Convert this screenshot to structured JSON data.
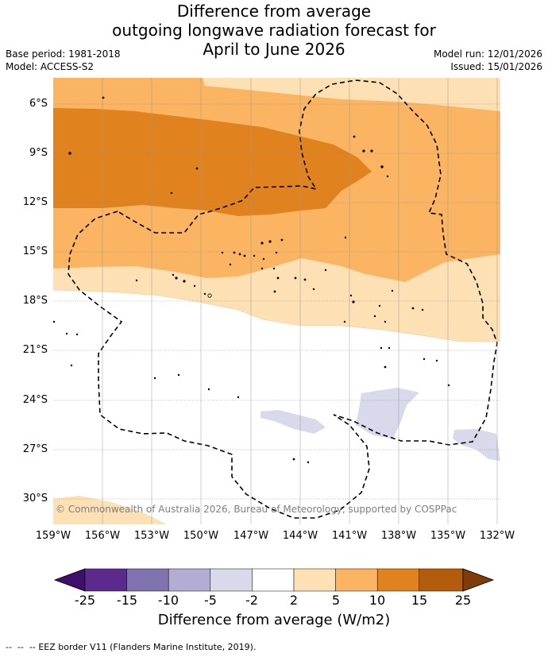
{
  "title": {
    "line1": "Difference from average",
    "line2": "outgoing longwave radiation forecast for",
    "line3": "April to June 2026"
  },
  "meta_left": {
    "base_period": "Base period: 1981-2018",
    "model": "Model: ACCESS-S2"
  },
  "meta_right": {
    "model_run": "Model run: 12/01/2026",
    "issued": "Issued: 15/01/2026"
  },
  "lat_labels": [
    "6°S",
    "9°S",
    "12°S",
    "15°S",
    "18°S",
    "21°S",
    "24°S",
    "27°S",
    "30°S"
  ],
  "lon_labels": [
    "159°W",
    "156°W",
    "153°W",
    "150°W",
    "147°W",
    "144°W",
    "141°W",
    "138°W",
    "135°W",
    "132°W"
  ],
  "copyright": "© Commonwealth of Australia 2026, Bureau of Meteorology, supported by COSPPac",
  "colorbar": {
    "labels": [
      "-25",
      "-15",
      "-10",
      "-5",
      "-2",
      "2",
      "5",
      "10",
      "15",
      "25"
    ],
    "colors": [
      "#3f0f6b",
      "#5b2a8c",
      "#8072ae",
      "#b3acd3",
      "#d8d9ea",
      "#ffffff",
      "#fde0b3",
      "#fbb462",
      "#e0821d",
      "#b35c0c",
      "#7f3b08"
    ],
    "title": "Difference from average (W/m2)"
  },
  "legend": {
    "eez": "EEZ border V11 (Flanders Marine Institute, 2019)."
  }
}
